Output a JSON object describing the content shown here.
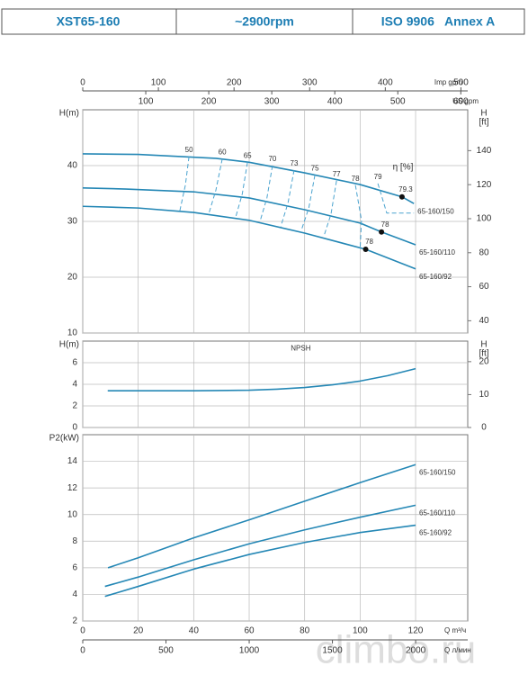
{
  "header": {
    "model": "XST65-160",
    "speed": "~2900rpm",
    "standard": "ISO 9906   Annex A"
  },
  "watermark": "climbo.ru",
  "chart_data": [
    {
      "type": "line",
      "ylabel": "H(m)",
      "y2label": [
        "H",
        "[ft]"
      ],
      "xlim": [
        0,
        138.8
      ],
      "ylim": [
        10,
        50
      ],
      "yticks": [
        10,
        20,
        30,
        40
      ],
      "y2lim": [
        32.8,
        164
      ],
      "y2ticks": [
        40,
        60,
        80,
        100,
        120,
        140
      ],
      "top_axes": [
        {
          "label": "Imp gpm",
          "xlim": [
            0,
            509
          ],
          "xticks": [
            0,
            100,
            200,
            300,
            400,
            500
          ]
        },
        {
          "label": "US gpm",
          "xlim": [
            0,
            611
          ],
          "xticks": [
            100,
            200,
            300,
            400,
            500,
            600
          ]
        }
      ],
      "series": [
        {
          "name": "65-160/150",
          "color": "#2487b5",
          "x": [
            0,
            20,
            48,
            60,
            80,
            100,
            115.1,
            119.4
          ],
          "values": [
            42.1,
            42,
            41.3,
            40.6,
            38.7,
            36.6,
            34.4,
            33.2
          ]
        },
        {
          "name": "65-160/110",
          "color": "#2487b5",
          "x": [
            0,
            15.6,
            40,
            60,
            80,
            100,
            107.7,
            120
          ],
          "values": [
            36,
            35.8,
            35.3,
            34.2,
            32.1,
            29.7,
            28.1,
            25.8
          ]
        },
        {
          "name": "65-160/92",
          "color": "#2487b5",
          "x": [
            0,
            20,
            40,
            60,
            80,
            102,
            120
          ],
          "values": [
            32.7,
            32.4,
            31.6,
            30.2,
            27.9,
            25,
            21.5
          ]
        }
      ],
      "efficiency": {
        "label": "η [%]",
        "color": "#4aa3cf",
        "lines": [
          {
            "value": 50,
            "x": [
              38.3,
              37,
              35
            ],
            "values": [
              41.6,
              36.5,
              31.9
            ]
          },
          {
            "value": 60,
            "x": [
              50.3,
              48,
              45.4
            ],
            "values": [
              41.2,
              35.6,
              31.3
            ]
          },
          {
            "value": 65,
            "x": [
              59.4,
              57.5,
              55.1
            ],
            "values": [
              40.6,
              34.9,
              30.7
            ]
          },
          {
            "value": 70,
            "x": [
              68.4,
              66.4,
              63.9
            ],
            "values": [
              40,
              34.2,
              30
            ]
          },
          {
            "value": 73,
            "x": [
              76.2,
              74,
              71.4
            ],
            "values": [
              39.2,
              33.3,
              29.1
            ]
          },
          {
            "value": 75,
            "x": [
              83.7,
              81.5,
              78.8
            ],
            "values": [
              38.3,
              32.4,
              28.4
            ]
          },
          {
            "value": 77,
            "x": [
              91.5,
              89.5,
              86.9
            ],
            "values": [
              37.3,
              31.3,
              27.3
            ]
          },
          {
            "value": 78,
            "x": [
              98.3,
              100.5,
              100
            ],
            "values": [
              36.5,
              30.2,
              25
            ]
          },
          {
            "value": 79,
            "x": [
              106.4,
              109.6,
              119.4
            ],
            "values": [
              36.8,
              31.5,
              31.5
            ]
          }
        ],
        "points": [
          {
            "value": 79.3,
            "x": 115.1,
            "y": 34.4
          },
          {
            "value": 78,
            "x": 107.7,
            "y": 28.1
          },
          {
            "value": 78,
            "x": 102,
            "y": 25
          }
        ]
      }
    },
    {
      "type": "line",
      "ylabel": "H(m)",
      "y2label": [
        "H",
        "[ft]"
      ],
      "xlim": [
        0,
        138.8
      ],
      "ylim": [
        0,
        8
      ],
      "yticks": [
        0,
        2,
        4,
        6
      ],
      "y2lim": [
        0,
        26.25
      ],
      "y2ticks": [
        0,
        10,
        20
      ],
      "series": [
        {
          "name": "NPSH",
          "color": "#2487b5",
          "x": [
            9,
            20,
            40,
            60,
            70,
            80,
            90,
            100,
            110,
            120
          ],
          "values": [
            3.4,
            3.4,
            3.4,
            3.45,
            3.55,
            3.7,
            3.95,
            4.3,
            4.8,
            5.45
          ]
        }
      ]
    },
    {
      "type": "line",
      "ylabel": "P2(kW)",
      "xlabel": "Q m³/ч",
      "xlim": [
        0,
        138.8
      ],
      "xticks": [
        0,
        20,
        40,
        60,
        80,
        100,
        120
      ],
      "ylim": [
        2,
        16
      ],
      "yticks": [
        2,
        4,
        6,
        8,
        10,
        12,
        14
      ],
      "bottom_axes": [
        {
          "label": "Q л/мин",
          "xlim": [
            0,
            2313
          ],
          "xticks": [
            0,
            500,
            1000,
            1500,
            2000
          ]
        }
      ],
      "series": [
        {
          "name": "65-160/150",
          "color": "#2487b5",
          "x": [
            9.1,
            20,
            40,
            60,
            80,
            100,
            120
          ],
          "values": [
            6,
            6.75,
            8.25,
            9.6,
            11,
            12.4,
            13.75
          ]
        },
        {
          "name": "65-160/110",
          "color": "#2487b5",
          "x": [
            8,
            20,
            40,
            60,
            80,
            100,
            120
          ],
          "values": [
            4.6,
            5.3,
            6.6,
            7.8,
            8.85,
            9.8,
            10.7
          ]
        },
        {
          "name": "65-160/92",
          "color": "#2487b5",
          "x": [
            8,
            20,
            40,
            60,
            80,
            100,
            120
          ],
          "values": [
            3.85,
            4.6,
            5.9,
            7,
            7.9,
            8.65,
            9.2
          ]
        }
      ]
    }
  ]
}
